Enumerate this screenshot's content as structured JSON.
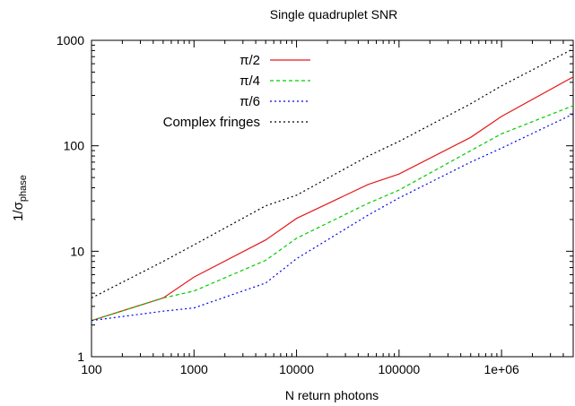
{
  "chart_data": {
    "type": "line",
    "title": "Single quadruplet SNR",
    "xlabel": "N return photons",
    "ylabel": {
      "main": "1/σ",
      "sub": "phase"
    },
    "xscale": "log",
    "yscale": "log",
    "xlim": [
      100,
      5000000
    ],
    "ylim": [
      1,
      1000
    ],
    "x_ticks": [
      {
        "value": 100,
        "label": "100"
      },
      {
        "value": 1000,
        "label": "1000"
      },
      {
        "value": 10000,
        "label": "10000"
      },
      {
        "value": 100000,
        "label": "100000"
      },
      {
        "value": 1000000,
        "label": "1e+06"
      }
    ],
    "y_ticks": [
      {
        "value": 1,
        "label": "1"
      },
      {
        "value": 10,
        "label": "10"
      },
      {
        "value": 100,
        "label": "100"
      },
      {
        "value": 1000,
        "label": "1000"
      }
    ],
    "grid": false,
    "legend_position": "top-left",
    "series": [
      {
        "name": "π/2",
        "color": "#e41a1c",
        "dash": "solid",
        "x": [
          100,
          500,
          1000,
          5000,
          10000,
          50000,
          100000,
          500000,
          1000000,
          5000000
        ],
        "y": [
          2.2,
          3.6,
          5.7,
          12.8,
          20.5,
          43,
          54,
          120,
          190,
          450
        ]
      },
      {
        "name": "π/4",
        "color": "#00cc00",
        "dash": "dashed",
        "x": [
          100,
          500,
          1000,
          5000,
          10000,
          50000,
          100000,
          500000,
          1000000,
          5000000
        ],
        "y": [
          2.2,
          3.6,
          4.2,
          8.2,
          13.3,
          28.5,
          38,
          90,
          130,
          240
        ]
      },
      {
        "name": "π/6",
        "color": "#0000ee",
        "dash": "dotted",
        "x": [
          100,
          500,
          1000,
          5000,
          10000,
          50000,
          100000,
          500000,
          1000000,
          5000000
        ],
        "y": [
          2.2,
          2.7,
          2.9,
          5,
          8.5,
          22,
          32,
          70,
          95,
          200
        ]
      },
      {
        "name": "Complex fringes",
        "color": "#000000",
        "dash": "dotted",
        "x": [
          100,
          500,
          1000,
          5000,
          10000,
          50000,
          100000,
          500000,
          1000000,
          5000000
        ],
        "y": [
          3.6,
          8,
          11.5,
          27,
          34,
          80,
          110,
          250,
          370,
          830
        ]
      }
    ]
  }
}
